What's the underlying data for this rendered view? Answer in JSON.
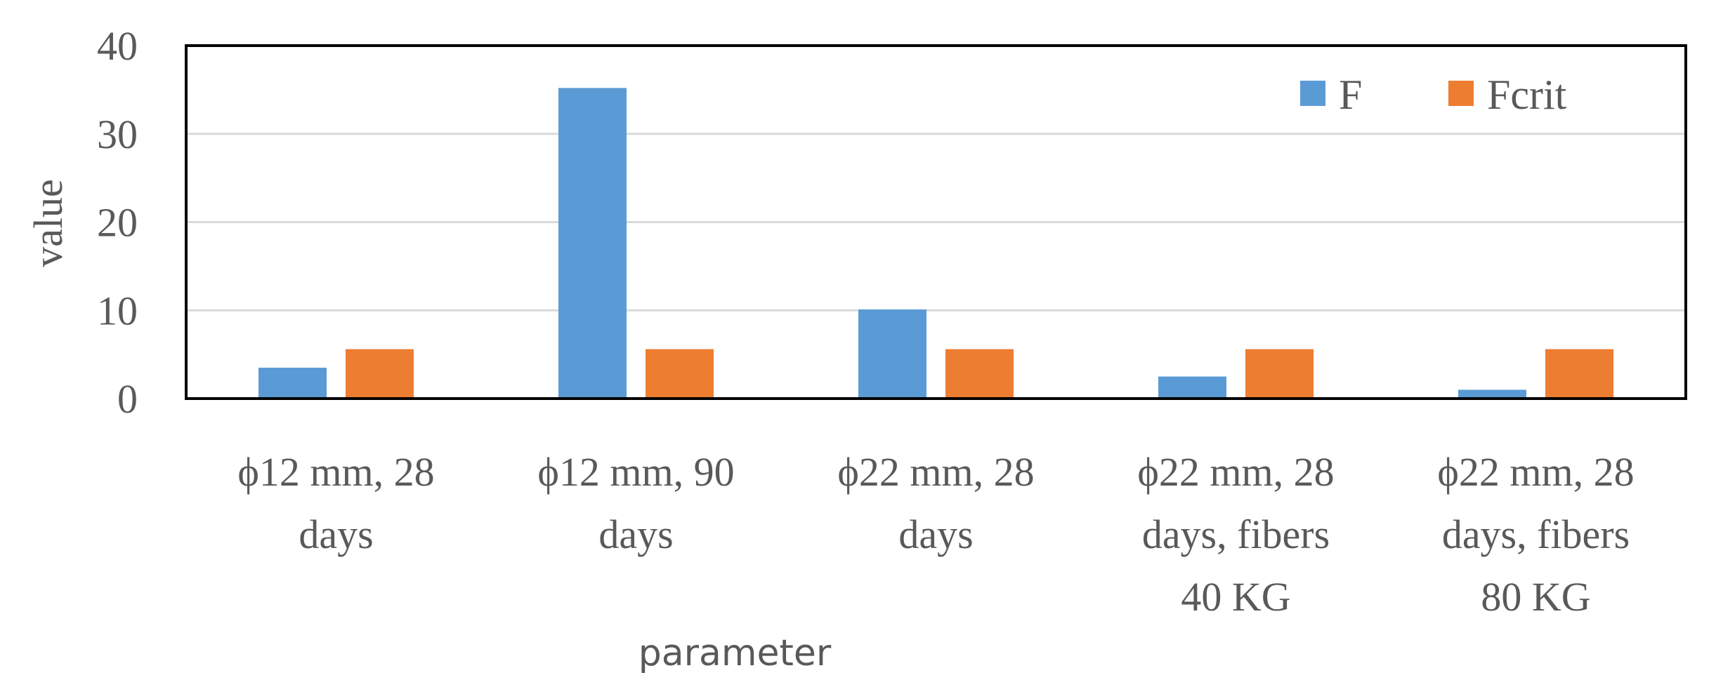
{
  "chart_data": {
    "type": "bar",
    "title": "",
    "xlabel": "parameter",
    "ylabel": "value",
    "ylim": [
      0,
      40
    ],
    "yticks": [
      0,
      10,
      20,
      30,
      40
    ],
    "grid": true,
    "legend_position": "top-right",
    "categories": [
      [
        "ϕ12 mm, 28",
        "days"
      ],
      [
        "ϕ12 mm, 90",
        "days"
      ],
      [
        "ϕ22 mm, 28",
        "days"
      ],
      [
        "ϕ22 mm, 28",
        "days, fibers",
        "40 KG"
      ],
      [
        "ϕ22 mm, 28",
        "days, fibers",
        "80 KG"
      ]
    ],
    "series": [
      {
        "name": "F",
        "color": "#5b9bd5",
        "values": [
          3.5,
          35.2,
          10.1,
          2.5,
          1.0
        ]
      },
      {
        "name": "Fcrit",
        "color": "#ed7d31",
        "values": [
          5.6,
          5.6,
          5.6,
          5.6,
          5.6
        ]
      }
    ]
  }
}
